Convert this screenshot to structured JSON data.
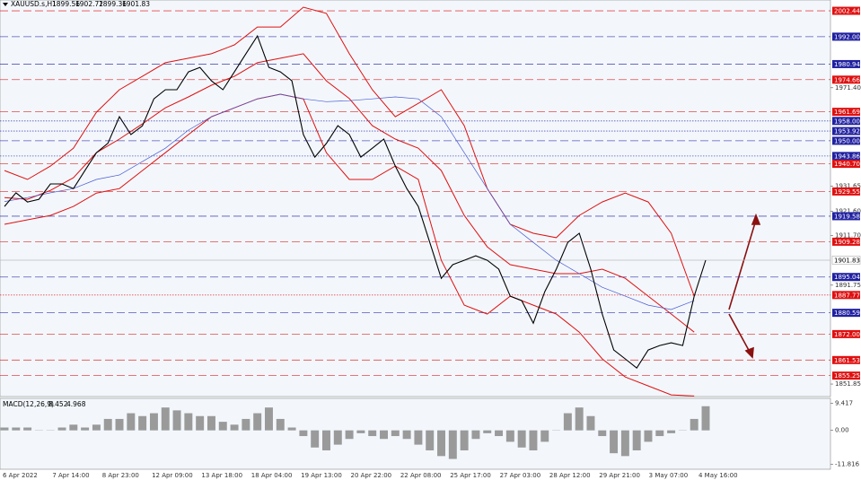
{
  "chart_data": {
    "type": "line",
    "symbol": "XAUUSD.s,H1",
    "ohlc": [
      1899.56,
      1902.72,
      1899.36,
      1901.83
    ],
    "x_labels": [
      "6 Apr 2022",
      "7 Apr 14:00",
      "8 Apr 23:00",
      "12 Apr 09:00",
      "13 Apr 18:00",
      "18 Apr 04:00",
      "19 Apr 13:00",
      "20 Apr 22:00",
      "22 Apr 08:00",
      "25 Apr 17:00",
      "27 Apr 03:00",
      "28 Apr 12:00",
      "29 Apr 21:00",
      "3 May 07:00",
      "4 May 16:00"
    ],
    "series": [
      {
        "color": "#000000",
        "values": [
          1923.5,
          1929,
          1925.3,
          1926.4,
          1932.6,
          1932.6,
          1930.7,
          1938,
          1945.2,
          1949,
          1959.7,
          1952.5,
          1956,
          1966.9,
          1970.6,
          1970.6,
          1977.8,
          1979.6,
          1974.2,
          1970.6,
          1977.8,
          1985.1,
          1992.3,
          1979.6,
          1977.8,
          1974.2,
          1952.5,
          1943.4,
          1948.9,
          1956.1,
          1952.5,
          1943.4,
          1947,
          1950.7,
          1939.8,
          1930.7,
          1923.5,
          1909,
          1894.5,
          1900,
          1901.8,
          1903.6,
          1901.8,
          1898.2,
          1887.3,
          1885.5,
          1876.4,
          1889.1,
          1898.2,
          1909,
          1912.7,
          1898.2,
          1880.1,
          1865.6,
          1862,
          1858.3,
          1865.6,
          1867.4,
          1868.5,
          1867.4,
          1887.3,
          1901.83
        ]
      }
    ],
    "bands": [
      {
        "color": "#e01010",
        "values": [
          1938.0,
          1934.4,
          1939.8,
          1947.0,
          1961.5,
          1970.6,
          1976.0,
          1981.5,
          1983.3,
          1985.1,
          1988.7,
          1995.9,
          1995.9,
          2003.9,
          2001.4,
          1985.1,
          1970.6,
          1959.7,
          1965.1,
          1970.6,
          1956.1,
          1930.7,
          1916.3,
          1912.7,
          1910.9,
          1919.9,
          1925.3,
          1928.9,
          1925.3,
          1912.7,
          1887.3
        ]
      },
      {
        "color": "#e01010",
        "values": [
          1927.1,
          1926.4,
          1930.0,
          1935.1,
          1945.2,
          1950.7,
          1956.8,
          1963.3,
          1967.7,
          1972.4,
          1976.0,
          1981.5,
          1983.3,
          1985.1,
          1974.2,
          1967.0,
          1956.1,
          1950.7,
          1947.0,
          1938.0,
          1919.9,
          1907.2,
          1900.0,
          1898.2,
          1896.4,
          1896.4,
          1898.2,
          1894.5,
          1887.3,
          1880.1,
          1872.8
        ]
      },
      {
        "color": "#e01010",
        "values": [
          1916.3,
          1918.1,
          1919.9,
          1923.5,
          1928.9,
          1930.7,
          1938.0,
          1945.2,
          1952.5,
          1959.7,
          1963.3,
          1966.9,
          1968.8,
          1966.9,
          1945.2,
          1934.4,
          1934.4,
          1939.8,
          1934.4,
          1901.8,
          1883.7,
          1880.1,
          1887.3,
          1883.7,
          1880.1,
          1872.8,
          1862.0,
          1854.7,
          1851.1,
          1847.5,
          1847.0
        ]
      },
      {
        "color": "#4a5ad0",
        "values": [
          1925.5,
          1927.1,
          1929.0,
          1930.7,
          1934.4,
          1936.2,
          1941.6,
          1947.0,
          1954.3,
          1959.7,
          1963.3,
          1966.9,
          1968.8,
          1966.9,
          1965.8,
          1966.2,
          1966.9,
          1967.7,
          1966.9,
          1959.7,
          1945.2,
          1930.7,
          1916.3,
          1909.0,
          1901.8,
          1896.4,
          1890.9,
          1887.3,
          1883.7,
          1881.9,
          1885.5
        ]
      }
    ],
    "ylim": [
      1846.8,
      2006.8
    ],
    "yticks": [
      {
        "value": 1971.4,
        "label": "1971.40"
      },
      1931.65,
      {
        "value": 1921.6,
        "label": "1921.60"
      },
      {
        "value": 1911.7,
        "label": "1911.70"
      },
      1891.75,
      1851.85
    ],
    "levels": [
      {
        "value": 2002.44,
        "label": "2002.44",
        "color": "#e01010",
        "style": "dashed"
      },
      {
        "value": 1992,
        "label": "1992.00",
        "color": "#2020a0",
        "style": "dashed"
      },
      {
        "value": 1980.94,
        "label": "1980.94",
        "color": "#2020a0",
        "style": "dashed"
      },
      {
        "value": 1974.66,
        "label": "1974.66",
        "color": "#e01010",
        "style": "dashed"
      },
      {
        "value": 1961.69,
        "label": "1961.69",
        "color": "#e01010",
        "style": "dashed"
      },
      {
        "value": 1958,
        "label": "1958.00",
        "color": "#2020a0",
        "style": "dotted"
      },
      {
        "value": 1953.92,
        "label": "1953.92",
        "color": "#2020a0",
        "style": "dotted"
      },
      {
        "value": 1950,
        "label": "1950.00",
        "color": "#2020a0",
        "style": "dashed"
      },
      {
        "value": 1943.86,
        "label": "1943.86",
        "color": "#2020a0",
        "style": "dotted"
      },
      {
        "value": 1940.7,
        "label": "1940.70",
        "color": "#e01010",
        "style": "dashed"
      },
      {
        "value": 1929.55,
        "label": "1929.55",
        "color": "#e01010",
        "style": "dashed"
      },
      {
        "value": 1919.58,
        "label": "1919.58",
        "color": "#2020a0",
        "style": "dashed"
      },
      {
        "value": 1909.28,
        "label": "1909.28",
        "color": "#e01010",
        "style": "dashed"
      },
      {
        "value": 1901.83,
        "label": "1901.83",
        "color": "#ffffff",
        "style": "solid"
      },
      {
        "value": 1895.04,
        "label": "1895.04",
        "color": "#2020a0",
        "style": "dashed"
      },
      {
        "value": 1887.77,
        "label": "1887.77",
        "color": "#e01010",
        "style": "dotted"
      },
      {
        "value": 1880.59,
        "label": "1880.59",
        "color": "#2020a0",
        "style": "dashed"
      },
      {
        "value": 1872,
        "label": "1872.00",
        "color": "#e01010",
        "style": "dashed"
      },
      {
        "value": 1861.53,
        "label": "1861.53",
        "color": "#e01010",
        "style": "dashed"
      },
      {
        "value": 1855.25,
        "label": "1855.25",
        "color": "#e01010",
        "style": "dashed"
      }
    ],
    "macd": {
      "label": "MACD(12,26,9)",
      "main": 8.452,
      "signal": 4.968,
      "color": "#9a9a9a",
      "values": [
        1,
        1,
        1,
        0,
        0,
        1,
        2,
        1,
        2,
        4,
        4,
        6,
        5,
        6,
        8,
        7,
        6,
        5,
        5,
        3,
        2,
        4,
        6,
        8,
        4,
        1,
        -2,
        -6,
        -7,
        -5,
        -3,
        -1,
        -2,
        -3,
        -2,
        -3,
        -5,
        -7,
        -9,
        -10,
        -7,
        -3,
        -1,
        -2,
        -4,
        -6,
        -7,
        -4,
        0,
        6,
        8,
        5,
        -2,
        -8,
        -9,
        -7,
        -4,
        -2,
        -1,
        0,
        4,
        8.452
      ],
      "ylim": [
        -13.6,
        11.2
      ],
      "yticks": [
        9.417,
        {
          "value": 0,
          "label": "0.00"
        },
        -11.816
      ]
    }
  }
}
